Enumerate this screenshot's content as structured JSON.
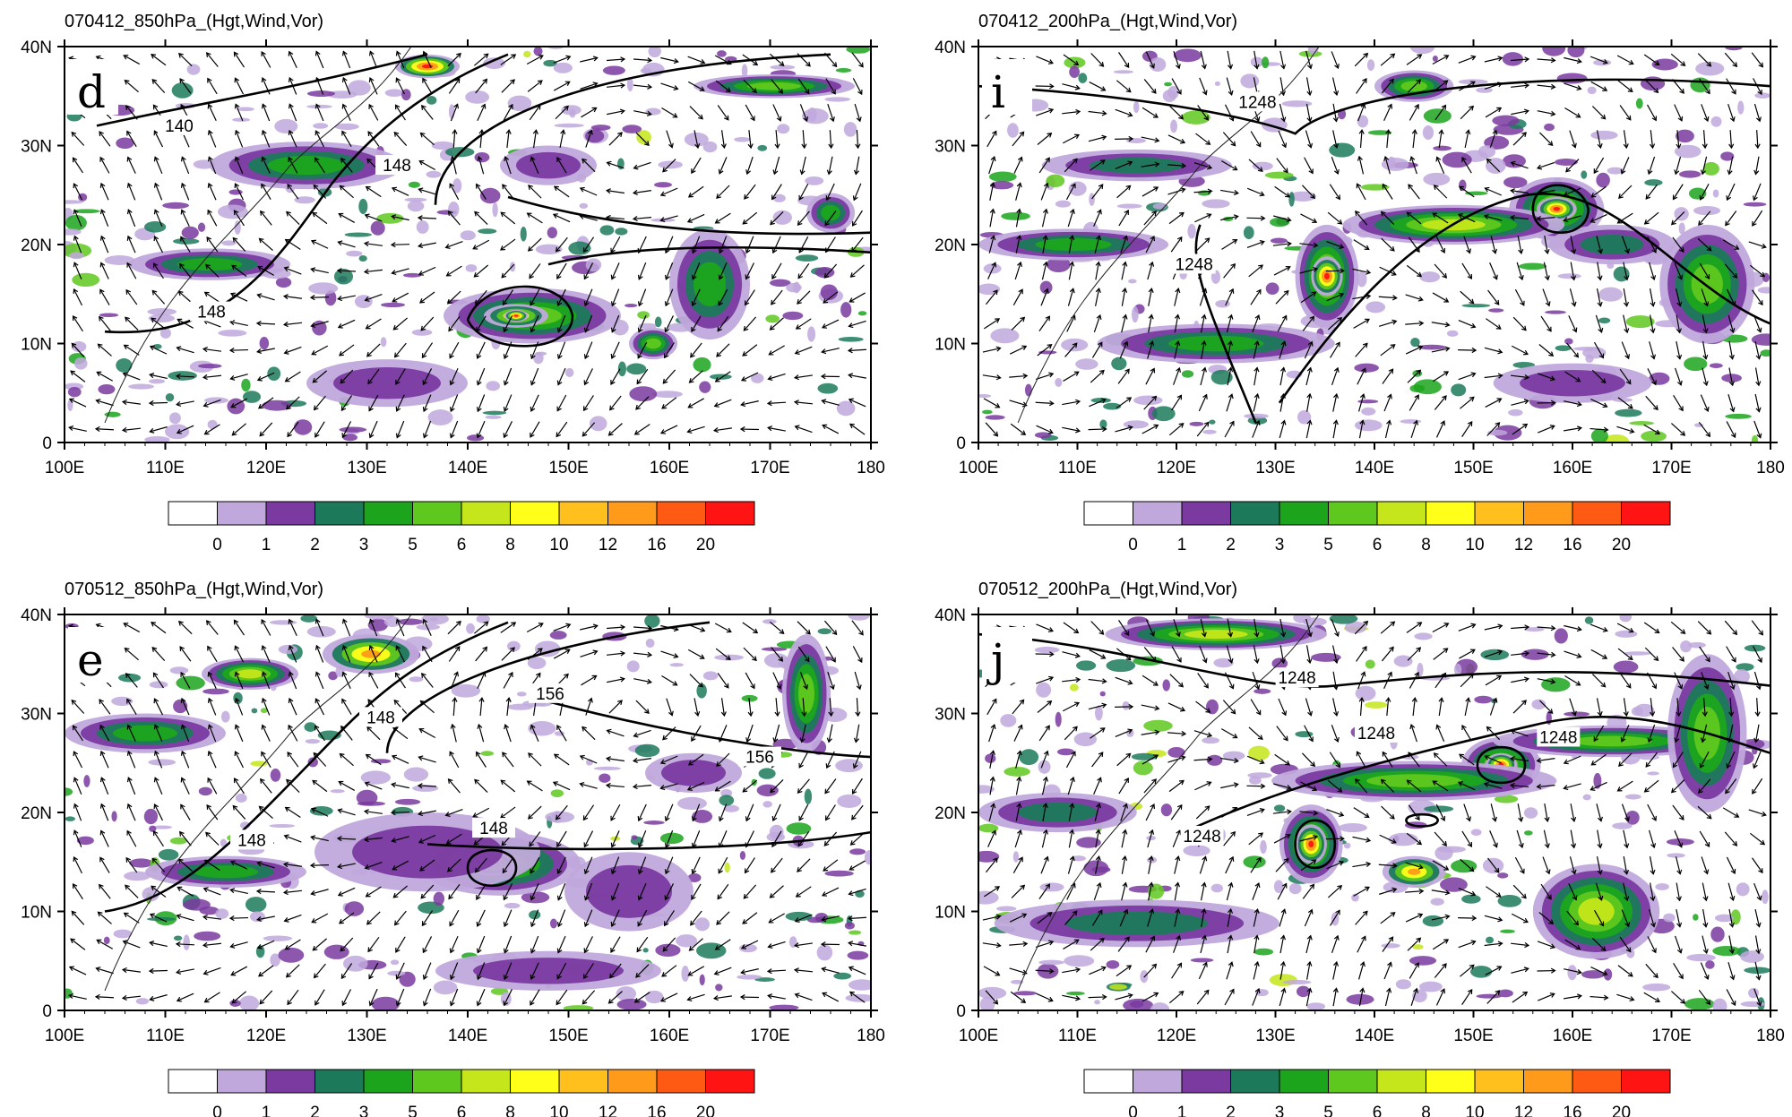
{
  "panels": [
    {
      "title": "070412_850hPa_(Hgt,Wind,Vor)",
      "label": "d",
      "level": "850hPa",
      "date": "070412",
      "contour_labels": [
        "140",
        "148",
        "148"
      ]
    },
    {
      "title": "070412_200hPa_(Hgt,Wind,Vor)",
      "label": "i",
      "level": "200hPa",
      "date": "070412",
      "contour_labels": [
        "1248",
        "1248"
      ]
    },
    {
      "title": "070512_850hPa_(Hgt,Wind,Vor)",
      "label": "e",
      "level": "850hPa",
      "date": "070512",
      "contour_labels": [
        "148",
        "148",
        "148",
        "156",
        "156"
      ]
    },
    {
      "title": "070512_200hPa_(Hgt,Wind,Vor)",
      "label": "j",
      "level": "200hPa",
      "date": "070512",
      "contour_labels": [
        "1248",
        "1248",
        "1248",
        "1248"
      ]
    }
  ],
  "x_ticks": [
    "100E",
    "110E",
    "120E",
    "130E",
    "140E",
    "150E",
    "160E",
    "170E",
    "180"
  ],
  "y_ticks": [
    "40N",
    "30N",
    "20N",
    "10N",
    "0"
  ],
  "colorbar": {
    "labels": [
      "0",
      "1",
      "2",
      "3",
      "5",
      "6",
      "8",
      "10",
      "12",
      "16",
      "20"
    ],
    "colors": [
      "#ffffff",
      "#c0a8dc",
      "#7a3aa0",
      "#1c7a5a",
      "#1ca51c",
      "#5fc81e",
      "#c4e61a",
      "#ffff1a",
      "#ffc01e",
      "#ff9a1a",
      "#ff5a14",
      "#ff1414"
    ]
  }
}
